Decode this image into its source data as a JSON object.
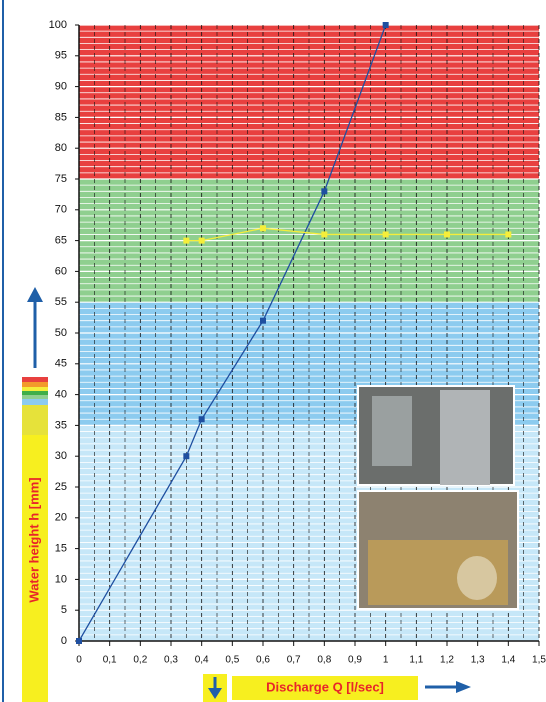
{
  "chart_data": {
    "type": "line",
    "x_label": "Discharge Q [l/sec]",
    "y_label": "Water height h [mm]",
    "xlim": [
      0,
      1.5
    ],
    "ylim": [
      0,
      100
    ],
    "xticks": [
      0,
      {
        "value": 0.1,
        "label": "0,1"
      },
      {
        "value": 0.2,
        "label": "0,2"
      },
      {
        "value": 0.3,
        "label": "0,3"
      },
      {
        "value": 0.4,
        "label": "0,4"
      },
      {
        "value": 0.5,
        "label": "0,5"
      },
      {
        "value": 0.6,
        "label": "0,6"
      },
      {
        "value": 0.7,
        "label": "0,7"
      },
      {
        "value": 0.8,
        "label": "0,8"
      },
      {
        "value": 0.9,
        "label": "0,9"
      },
      1,
      {
        "value": 1.1,
        "label": "1,1"
      },
      {
        "value": 1.2,
        "label": "1,2"
      },
      {
        "value": 1.3,
        "label": "1,3"
      },
      {
        "value": 1.4,
        "label": "1,4"
      },
      {
        "value": 1.5,
        "label": "1,5"
      }
    ],
    "yticks": [
      0,
      5,
      10,
      15,
      20,
      25,
      30,
      35,
      40,
      45,
      50,
      55,
      60,
      65,
      70,
      75,
      80,
      85,
      90,
      95,
      100
    ],
    "bands": [
      {
        "from": 75,
        "to": 100,
        "color": "#e8403f"
      },
      {
        "from": 55,
        "to": 75,
        "color": "#8fcf8f"
      },
      {
        "from": 35,
        "to": 55,
        "color": "#8ccbef"
      },
      {
        "from": 0,
        "to": 35,
        "color": "#c6e7f8"
      }
    ],
    "grid": true,
    "series": [
      {
        "color": "#1f4fa0",
        "x": [
          0,
          0.35,
          0.4,
          0.6,
          0.8,
          1.0
        ],
        "values": [
          0,
          30,
          36,
          52,
          73,
          100
        ]
      },
      {
        "color": "#f5ee3a",
        "x": [
          0.35,
          0.4,
          0.6,
          0.8,
          1.0,
          1.2,
          1.4
        ],
        "values": [
          65,
          65,
          67,
          66,
          66,
          66,
          66
        ]
      }
    ]
  }
}
